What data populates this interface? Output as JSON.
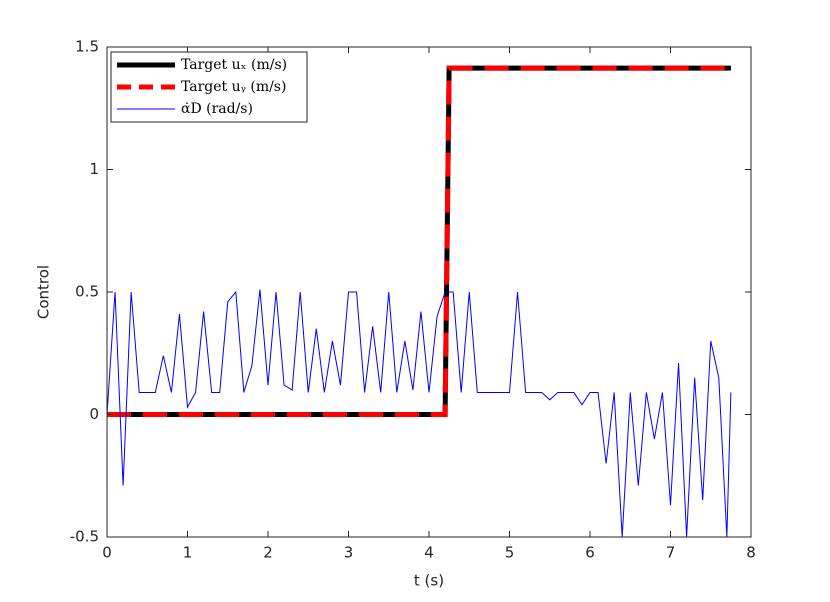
{
  "chart_data": {
    "type": "line",
    "x_label": "t (s)",
    "y_label": "Control",
    "xlim": [
      0,
      8
    ],
    "ylim": [
      -0.5,
      1.5
    ],
    "xticks": [
      0,
      1,
      2,
      3,
      4,
      5,
      6,
      7,
      8
    ],
    "yticks": [
      -0.5,
      0,
      0.5,
      1,
      1.5
    ],
    "legend": "upper left",
    "series": [
      {
        "name": "Target uₓ (m/s)",
        "color": "#000000",
        "style": "solid",
        "width": 5,
        "x": [
          0,
          4.2,
          4.25,
          7.75
        ],
        "values": [
          0,
          0,
          1.414,
          1.414
        ]
      },
      {
        "name": "Target uᵧ (m/s)",
        "color": "#ff0000",
        "style": "dashed",
        "width": 5,
        "x": [
          0,
          4.2,
          4.25,
          7.75
        ],
        "values": [
          0,
          0,
          1.414,
          1.414
        ]
      },
      {
        "name": "α̇D (rad/s)",
        "color": "#0000ff",
        "style": "solid",
        "width": 1,
        "x": [
          0,
          0.1,
          0.2,
          0.3,
          0.4,
          0.5,
          0.6,
          0.7,
          0.8,
          0.9,
          1.0,
          1.1,
          1.2,
          1.3,
          1.4,
          1.5,
          1.6,
          1.7,
          1.8,
          1.9,
          2.0,
          2.1,
          2.2,
          2.3,
          2.4,
          2.5,
          2.6,
          2.7,
          2.8,
          2.9,
          3.0,
          3.1,
          3.2,
          3.3,
          3.4,
          3.5,
          3.6,
          3.7,
          3.8,
          3.9,
          4.0,
          4.1,
          4.2,
          4.3,
          4.4,
          4.5,
          4.6,
          4.7,
          4.8,
          4.9,
          5.0,
          5.1,
          5.2,
          5.3,
          5.4,
          5.5,
          5.6,
          5.7,
          5.8,
          5.9,
          6.0,
          6.1,
          6.2,
          6.3,
          6.4,
          6.5,
          6.6,
          6.7,
          6.8,
          6.9,
          7.0,
          7.1,
          7.2,
          7.3,
          7.4,
          7.5,
          7.6,
          7.7,
          7.75
        ],
        "values": [
          0,
          0.5,
          -0.29,
          0.5,
          0.09,
          0.09,
          0.09,
          0.24,
          0.09,
          0.41,
          0.03,
          0.09,
          0.42,
          0.09,
          0.09,
          0.46,
          0.5,
          0.09,
          0.2,
          0.51,
          0.12,
          0.5,
          0.12,
          0.1,
          0.5,
          0.09,
          0.35,
          0.09,
          0.3,
          0.12,
          0.5,
          0.5,
          0.09,
          0.36,
          0.09,
          0.5,
          0.09,
          0.3,
          0.1,
          0.42,
          0.09,
          0.4,
          0.5,
          0.5,
          0.09,
          0.5,
          0.09,
          0.09,
          0.09,
          0.09,
          0.09,
          0.5,
          0.09,
          0.09,
          0.09,
          0.06,
          0.09,
          0.09,
          0.09,
          0.04,
          0.09,
          0.09,
          -0.2,
          0.09,
          -0.5,
          0.09,
          -0.29,
          0.09,
          -0.1,
          0.09,
          -0.37,
          0.21,
          -0.5,
          0.15,
          -0.35,
          0.3,
          0.15,
          -0.5,
          0.09
        ]
      }
    ]
  }
}
